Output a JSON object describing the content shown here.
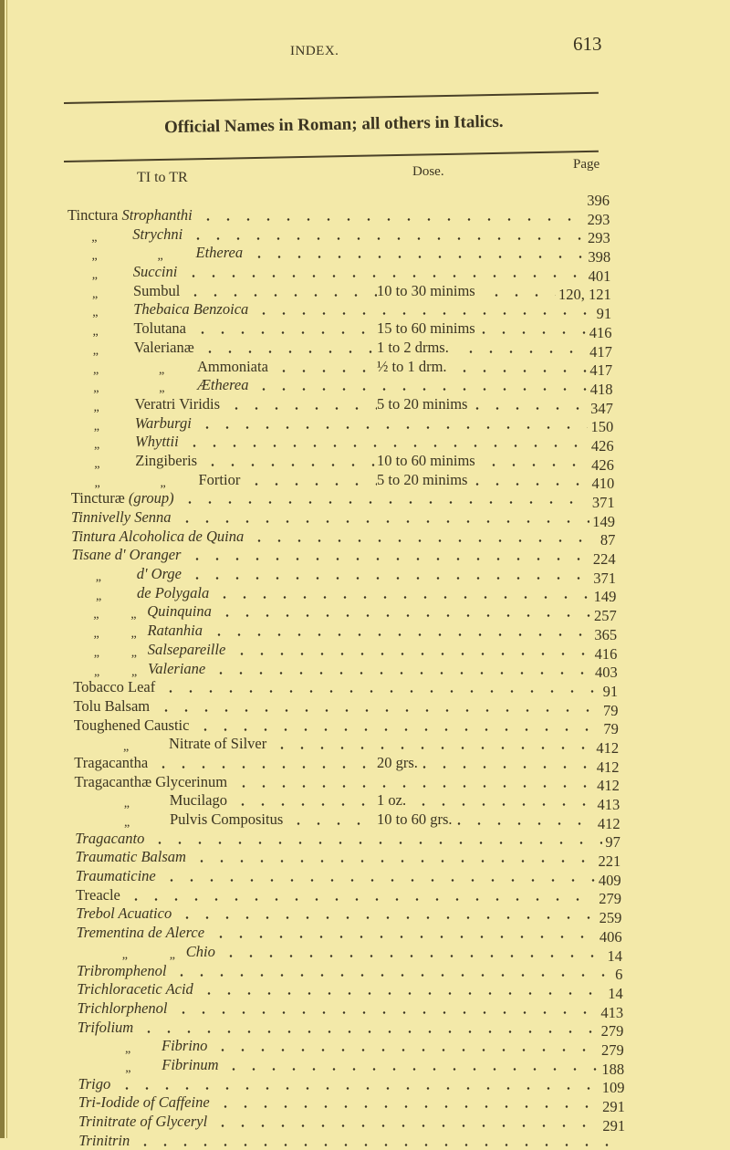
{
  "header": {
    "running_head": "INDEX.",
    "page_number": "613"
  },
  "subtitle": "Official Names in Roman; all others in Italics.",
  "columns": {
    "section_range": "TI to TR",
    "dose": "Dose.",
    "page": "Page"
  },
  "entries": [
    {
      "level": 0,
      "ditto": [],
      "lead": "Tinctura ",
      "name": "Strophanthi",
      "italic": true,
      "tail": "",
      "dose": "",
      "page": "396"
    },
    {
      "level": 1,
      "ditto": [
        "„"
      ],
      "lead": "",
      "name": "Strychni",
      "italic": true,
      "tail": "",
      "dose": "",
      "page": "293"
    },
    {
      "level": 2,
      "ditto": [
        "„",
        "„"
      ],
      "lead": "",
      "name": "Etherea",
      "italic": true,
      "tail": "",
      "dose": "",
      "page": "293"
    },
    {
      "level": 1,
      "ditto": [
        "„"
      ],
      "lead": "",
      "name": "Succini",
      "italic": true,
      "tail": "",
      "dose": "",
      "page": "398"
    },
    {
      "level": 1,
      "ditto": [
        "„"
      ],
      "lead": "",
      "name": "Sumbul",
      "italic": false,
      "tail": "",
      "dose": "10 to 30 minims",
      "page": "401"
    },
    {
      "level": 1,
      "ditto": [
        "„"
      ],
      "lead": "",
      "name": "Thebaica Benzoica",
      "italic": true,
      "tail": "",
      "dose": "",
      "page": "120, 121"
    },
    {
      "level": 1,
      "ditto": [
        "„"
      ],
      "lead": "",
      "name": "Tolutana",
      "italic": false,
      "tail": "",
      "dose": "15 to 60 minims",
      "page": "91"
    },
    {
      "level": 1,
      "ditto": [
        "„"
      ],
      "lead": "",
      "name": "Valerianæ",
      "italic": false,
      "tail": "",
      "dose": "1 to 2 drms.",
      "page": "416"
    },
    {
      "level": 2,
      "ditto": [
        "„",
        "„"
      ],
      "lead": "",
      "name": "Ammoniata",
      "italic": false,
      "tail": "",
      "dose": "½ to 1 drm.",
      "page": "417"
    },
    {
      "level": 2,
      "ditto": [
        "„",
        "„"
      ],
      "lead": "",
      "name": "Ætherea",
      "italic": true,
      "tail": "",
      "dose": "",
      "page": "417"
    },
    {
      "level": 1,
      "ditto": [
        "„"
      ],
      "lead": "",
      "name": "Veratri Viridis",
      "italic": false,
      "tail": "",
      "dose": "5 to 20 minims",
      "page": "418"
    },
    {
      "level": 1,
      "ditto": [
        "„"
      ],
      "lead": "",
      "name": "Warburgi",
      "italic": true,
      "tail": "",
      "dose": "",
      "page": "347"
    },
    {
      "level": 1,
      "ditto": [
        "„"
      ],
      "lead": "",
      "name": "Whyttii",
      "italic": true,
      "tail": "",
      "dose": "",
      "page": "150"
    },
    {
      "level": 1,
      "ditto": [
        "„"
      ],
      "lead": "",
      "name": "Zingiberis",
      "italic": false,
      "tail": "",
      "dose": "10 to 60 minims",
      "page": "426"
    },
    {
      "level": 2,
      "ditto": [
        "„",
        "„"
      ],
      "lead": "",
      "name": "Fortior",
      "italic": false,
      "tail": "",
      "dose": "5 to 20 minims",
      "page": "426"
    },
    {
      "level": 0,
      "ditto": [],
      "lead": "",
      "name": "Tincturæ ",
      "italic": false,
      "tail": "(group)",
      "dose": "",
      "page": "410"
    },
    {
      "level": 0,
      "ditto": [],
      "lead": "",
      "name": "Tinnivelly Senna",
      "italic": true,
      "tail": "",
      "dose": "",
      "page": "371"
    },
    {
      "level": 0,
      "ditto": [],
      "lead": "",
      "name": "Tintura Alcoholica de Quina",
      "italic": true,
      "tail": "",
      "dose": "",
      "page": "149"
    },
    {
      "level": 0,
      "ditto": [],
      "lead": "",
      "name": "Tisane d' Oranger",
      "italic": true,
      "tail": "",
      "dose": "",
      "page": "87"
    },
    {
      "level": 1,
      "ditto": [
        "„"
      ],
      "lead": "",
      "name": "d' Orge",
      "italic": true,
      "tail": "",
      "dose": "",
      "page": "224"
    },
    {
      "level": 1,
      "ditto": [
        "„"
      ],
      "lead": "",
      "name": "de Polygala",
      "italic": true,
      "tail": "",
      "dose": "",
      "page": "371"
    },
    {
      "level": 3,
      "ditto": [
        "„",
        "„"
      ],
      "lead": "",
      "name": "Quinquina",
      "italic": true,
      "tail": "",
      "dose": "",
      "page": "149"
    },
    {
      "level": 3,
      "ditto": [
        "„",
        "„"
      ],
      "lead": "",
      "name": "Ratanhia",
      "italic": true,
      "tail": "",
      "dose": "",
      "page": "257"
    },
    {
      "level": 3,
      "ditto": [
        "„",
        "„"
      ],
      "lead": "",
      "name": "Salsepareille",
      "italic": true,
      "tail": "",
      "dose": "",
      "page": "365"
    },
    {
      "level": 3,
      "ditto": [
        "„",
        "„"
      ],
      "lead": "",
      "name": "Valeriane",
      "italic": true,
      "tail": "",
      "dose": "",
      "page": "416"
    },
    {
      "level": 0,
      "ditto": [],
      "lead": "",
      "name": "Tobacco Leaf",
      "italic": false,
      "tail": "",
      "dose": "",
      "page": "403"
    },
    {
      "level": 0,
      "ditto": [],
      "lead": "",
      "name": "Tolu Balsam",
      "italic": false,
      "tail": "",
      "dose": "",
      "page": "91"
    },
    {
      "level": 0,
      "ditto": [],
      "lead": "",
      "name": "Toughened Caustic",
      "italic": false,
      "tail": "",
      "dose": "",
      "page": "79"
    },
    {
      "level": 4,
      "ditto": [
        "„"
      ],
      "lead": "",
      "name": "Nitrate of Silver",
      "italic": false,
      "tail": "",
      "dose": "",
      "page": "79"
    },
    {
      "level": 0,
      "ditto": [],
      "lead": "",
      "name": "Tragacantha",
      "italic": false,
      "tail": "",
      "dose": "20 grs.",
      "page": "412"
    },
    {
      "level": 0,
      "ditto": [],
      "lead": "",
      "name": "Tragacanthæ Glycerinum",
      "italic": false,
      "tail": "",
      "dose": "",
      "page": "412"
    },
    {
      "level": 4,
      "ditto": [
        "„"
      ],
      "lead": "",
      "name": "Mucilago",
      "italic": false,
      "tail": "",
      "dose": "1 oz.",
      "page": "412"
    },
    {
      "level": 4,
      "ditto": [
        "„"
      ],
      "lead": "",
      "name": "Pulvis Compositus",
      "italic": false,
      "tail": "",
      "dose": "10 to 60 grs.",
      "page": "413"
    },
    {
      "level": 0,
      "ditto": [],
      "lead": "",
      "name": "Tragacanto",
      "italic": true,
      "tail": "",
      "dose": "",
      "page": "412"
    },
    {
      "level": 0,
      "ditto": [],
      "lead": "",
      "name": "Traumatic Balsam",
      "italic": true,
      "tail": "",
      "dose": "",
      "page": "97"
    },
    {
      "level": 0,
      "ditto": [],
      "lead": "",
      "name": "Traumaticine",
      "italic": true,
      "tail": "",
      "dose": "",
      "page": "221"
    },
    {
      "level": 0,
      "ditto": [],
      "lead": "",
      "name": "Treacle",
      "italic": false,
      "tail": "",
      "dose": "",
      "page": "409"
    },
    {
      "level": 0,
      "ditto": [],
      "lead": "",
      "name": "Trebol Acuatico",
      "italic": true,
      "tail": "",
      "dose": "",
      "page": "279"
    },
    {
      "level": 0,
      "ditto": [],
      "lead": "",
      "name": "Trementina de Alerce",
      "italic": true,
      "tail": "",
      "dose": "",
      "page": "259"
    },
    {
      "level": 5,
      "ditto": [
        "„",
        "„"
      ],
      "lead": "",
      "name": "Chio",
      "italic": true,
      "tail": "",
      "dose": "",
      "page": "406"
    },
    {
      "level": 0,
      "ditto": [],
      "lead": "",
      "name": "Tribromphenol",
      "italic": true,
      "tail": "",
      "dose": "",
      "page": "14"
    },
    {
      "level": 0,
      "ditto": [],
      "lead": "",
      "name": "Trichloracetic Acid",
      "italic": true,
      "tail": "",
      "dose": "",
      "page": "6"
    },
    {
      "level": 0,
      "ditto": [],
      "lead": "",
      "name": "Trichlorphenol",
      "italic": true,
      "tail": "",
      "dose": "",
      "page": "14"
    },
    {
      "level": 0,
      "ditto": [],
      "lead": "",
      "name": "Trifolium",
      "italic": true,
      "tail": "",
      "dose": "",
      "page": "413"
    },
    {
      "level": 6,
      "ditto": [
        "„"
      ],
      "lead": "",
      "name": "Fibrino",
      "italic": true,
      "tail": "",
      "dose": "",
      "page": "279"
    },
    {
      "level": 6,
      "ditto": [
        "„"
      ],
      "lead": "",
      "name": "Fibrinum",
      "italic": true,
      "tail": "",
      "dose": "",
      "page": "279"
    },
    {
      "level": 0,
      "ditto": [],
      "lead": "",
      "name": "Trigo",
      "italic": true,
      "tail": "",
      "dose": "",
      "page": "188"
    },
    {
      "level": 0,
      "ditto": [],
      "lead": "",
      "name": "Tri-Iodide of Caffeine",
      "italic": true,
      "tail": "",
      "dose": "",
      "page": "109"
    },
    {
      "level": 0,
      "ditto": [],
      "lead": "",
      "name": "Trinitrate of Glyceryl",
      "italic": true,
      "tail": "",
      "dose": "",
      "page": "291"
    },
    {
      "level": 0,
      "ditto": [],
      "lead": "",
      "name": "Trinitrin",
      "italic": true,
      "tail": "",
      "dose": "",
      "page": "291"
    }
  ]
}
